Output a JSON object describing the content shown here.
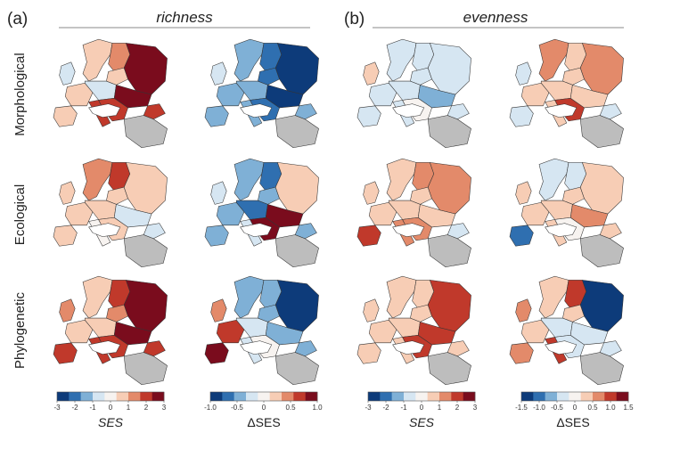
{
  "panels": [
    {
      "id": "a",
      "label": "(a)",
      "title": "richness"
    },
    {
      "id": "b",
      "label": "(b)",
      "title": "evenness"
    }
  ],
  "rows": [
    "Morphological",
    "Ecological",
    "Phylogenetic"
  ],
  "colors": {
    "scale": [
      "#0d3b7a",
      "#2f6fb0",
      "#7fb0d6",
      "#d6e6f2",
      "#f7f3f0",
      "#f7cdb5",
      "#e38a6a",
      "#c0392b",
      "#7a0c1d"
    ],
    "missing": "#bdbdbd",
    "outline": "#333333",
    "rule": "#888888"
  },
  "chart_data": {
    "type": "choropleth-map-grid",
    "columns": [
      {
        "panel": "richness",
        "metric": "SES",
        "colorbar_label": "SES",
        "ticks": [
          "-3",
          "-2",
          "-1",
          "0",
          "1",
          "2",
          "3"
        ],
        "range": [
          -3,
          3
        ]
      },
      {
        "panel": "richness",
        "metric": "ΔSES",
        "colorbar_label": "ΔSES",
        "ticks": [
          "-1.0",
          "-0.5",
          "0",
          "0.5",
          "1.0"
        ],
        "range": [
          -1,
          1
        ]
      },
      {
        "panel": "evenness",
        "metric": "SES",
        "colorbar_label": "SES",
        "ticks": [
          "-3",
          "-2",
          "-1",
          "0",
          "1",
          "2",
          "3"
        ],
        "range": [
          -3,
          3
        ]
      },
      {
        "panel": "evenness",
        "metric": "ΔSES",
        "colorbar_label": "ΔSES",
        "ticks": [
          "-1.5",
          "-1.0",
          "-0.5",
          "0",
          "0.5",
          "1.0",
          "1.5"
        ],
        "range": [
          -1.5,
          1.5
        ]
      }
    ],
    "regions": [
      "iberia",
      "france",
      "britain",
      "scandinavia",
      "finland",
      "baltic",
      "central",
      "italy",
      "balkans",
      "ukraine",
      "russia",
      "turkey",
      "caucasus"
    ],
    "maps": [
      [
        {
          "iberia": 1,
          "france": 0.5,
          "britain": -0.5,
          "scandinavia": 0.5,
          "finland": 1.5,
          "baltic": 0.5,
          "central": -1,
          "italy": 2,
          "balkans": 2.5,
          "ukraine": 3,
          "russia": 3,
          "turkey": null,
          "caucasus": 2
        },
        {
          "iberia": -0.5,
          "france": -0.5,
          "britain": -0.3,
          "scandinavia": -0.6,
          "finland": -0.8,
          "baltic": -0.7,
          "central": -0.5,
          "italy": -0.4,
          "balkans": -0.8,
          "ukraine": -1,
          "russia": -1,
          "turkey": null,
          "caucasus": -0.5
        },
        {
          "iberia": -1,
          "france": -0.5,
          "britain": 0.5,
          "scandinavia": -1,
          "finland": -1,
          "baltic": -0.5,
          "central": -1,
          "italy": -0.5,
          "balkans": 0.2,
          "ukraine": -1.5,
          "russia": -1,
          "turkey": null,
          "caucasus": -0.5
        },
        {
          "iberia": -0.3,
          "france": 0.2,
          "britain": -0.2,
          "scandinavia": 0.6,
          "finland": 0.5,
          "baltic": 0.3,
          "central": 0.4,
          "italy": 0.5,
          "balkans": 1.2,
          "ukraine": 0.5,
          "russia": 0.6,
          "turkey": null,
          "caucasus": -0.3
        }
      ],
      [
        {
          "iberia": 0.5,
          "france": 0.5,
          "britain": 1,
          "scandinavia": 1.5,
          "finland": 2.5,
          "baltic": 1,
          "central": 0.5,
          "italy": -0.3,
          "balkans": 0.5,
          "ukraine": -0.5,
          "russia": 1,
          "turkey": null,
          "caucasus": -0.5
        },
        {
          "iberia": -0.6,
          "france": -0.4,
          "britain": -0.2,
          "scandinavia": -0.5,
          "finland": -0.7,
          "baltic": -0.5,
          "central": -0.8,
          "italy": -0.3,
          "balkans": 0.9,
          "ukraine": 1,
          "russia": 0.2,
          "turkey": null,
          "caucasus": -0.4
        },
        {
          "iberia": 2.5,
          "france": 1,
          "britain": 1,
          "scandinavia": 1,
          "finland": 1.5,
          "baltic": 1,
          "central": 1,
          "italy": 1.5,
          "balkans": 1.5,
          "ukraine": 1,
          "russia": 1.2,
          "turkey": null,
          "caucasus": -0.5
        },
        {
          "iberia": -1.2,
          "france": 0.5,
          "britain": 0.3,
          "scandinavia": -0.3,
          "finland": -0.5,
          "baltic": 0.5,
          "central": 0.2,
          "italy": 0.2,
          "balkans": 0.1,
          "ukraine": 0.6,
          "russia": 0.3,
          "turkey": null,
          "caucasus": 0.5
        }
      ],
      [
        {
          "iberia": 2,
          "france": 1,
          "britain": 1.5,
          "scandinavia": 1,
          "finland": 2,
          "baltic": 1.5,
          "central": 1,
          "italy": 2,
          "balkans": 2.5,
          "ukraine": 3,
          "russia": 3,
          "turkey": null,
          "caucasus": 2
        },
        {
          "iberia": 1,
          "france": 0.8,
          "britain": 0.5,
          "scandinavia": -0.5,
          "finland": -0.6,
          "baltic": -0.4,
          "central": -0.3,
          "italy": -0.2,
          "balkans": 0.1,
          "ukraine": -0.6,
          "russia": -1,
          "turkey": null,
          "caucasus": -0.4
        },
        {
          "iberia": 1,
          "france": 1,
          "britain": 0.5,
          "scandinavia": 0.5,
          "finland": 1,
          "baltic": 1,
          "central": 1,
          "italy": 1,
          "balkans": 2,
          "ukraine": 2,
          "russia": 2.5,
          "turkey": null,
          "caucasus": 1
        },
        {
          "iberia": 0.8,
          "france": 0.5,
          "britain": 0.6,
          "scandinavia": 0.3,
          "finland": 1,
          "baltic": 0.5,
          "central": -0.3,
          "italy": 1,
          "balkans": -0.4,
          "ukraine": -0.5,
          "russia": -1.5,
          "turkey": null,
          "caucasus": -0.3
        }
      ]
    ]
  }
}
